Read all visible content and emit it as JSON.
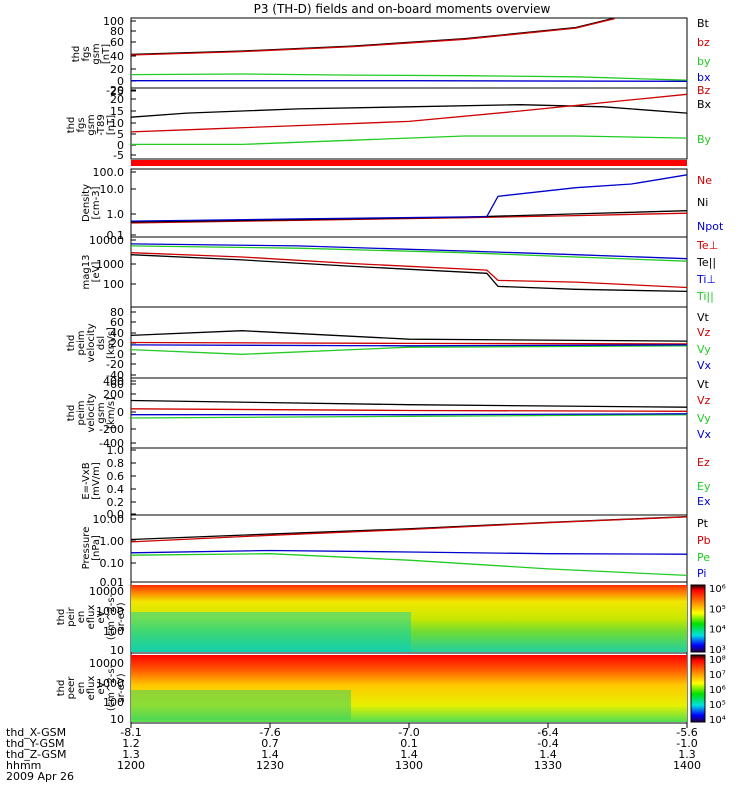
{
  "title": "P3 (TH-D) fields and on-board moments overview",
  "colors": {
    "black": "#000000",
    "red": "#cc0000",
    "green": "#22cc22",
    "blue": "#0000cc",
    "bar_red": "#ff0000"
  },
  "panels": [
    {
      "id": "fgs",
      "ylabel": [
        "thd",
        "fgs",
        "gsm",
        "[nT]"
      ],
      "ticks": [
        "100",
        "80",
        "60",
        "40",
        "20",
        "0",
        "-20"
      ],
      "legend": [
        {
          "text": "Bt",
          "color": "black"
        },
        {
          "text": "bz",
          "color": "red"
        },
        {
          "text": "by",
          "color": "green"
        },
        {
          "text": "bx",
          "color": "blue"
        }
      ]
    },
    {
      "id": "fgs_dt89",
      "ylabel": [
        "thd",
        "fgs",
        "gsm",
        "-T89",
        "[nT]"
      ],
      "ticks": [
        "25",
        "20",
        "15",
        "10",
        "5",
        "0",
        "-5"
      ],
      "legend": [
        {
          "text": "Bz",
          "color": "red"
        },
        {
          "text": "Bx",
          "color": "black"
        },
        {
          "text": "By",
          "color": "green"
        }
      ]
    },
    {
      "id": "density",
      "ylabel": [
        "Density",
        "[cm-3]"
      ],
      "ticks": [
        "100.0",
        "10.0",
        "1.0",
        "0.1"
      ],
      "legend": [
        {
          "text": "Ne",
          "color": "red"
        },
        {
          "text": "Ni",
          "color": "black"
        },
        {
          "text": "Npot",
          "color": "blue"
        }
      ]
    },
    {
      "id": "temp",
      "ylabel": [
        "mag13",
        "[eV]"
      ],
      "ticks": [
        "10000",
        "1000",
        "100"
      ],
      "legend": [
        {
          "text": "Te⊥",
          "color": "red"
        },
        {
          "text": "Te||",
          "color": "black"
        },
        {
          "text": "Ti⊥",
          "color": "blue"
        },
        {
          "text": "Ti||",
          "color": "green"
        }
      ]
    },
    {
      "id": "vel_dsl",
      "ylabel": [
        "thd",
        "peim",
        "velocity",
        "dsl",
        "[km/s]"
      ],
      "ticks": [
        "80",
        "60",
        "40",
        "20",
        "0",
        "-20",
        "-40",
        "-60"
      ],
      "legend": [
        {
          "text": "Vt",
          "color": "black"
        },
        {
          "text": "Vz",
          "color": "red"
        },
        {
          "text": "Vy",
          "color": "green"
        },
        {
          "text": "Vx",
          "color": "blue"
        }
      ]
    },
    {
      "id": "vel_gsm",
      "ylabel": [
        "thd",
        "peim",
        "velocity",
        "gsm",
        "[km/s]"
      ],
      "ticks": [
        "400",
        "200",
        "0",
        "-200",
        "-400"
      ],
      "legend": [
        {
          "text": "Vt",
          "color": "black"
        },
        {
          "text": "Vz",
          "color": "red"
        },
        {
          "text": "Vy",
          "color": "green"
        },
        {
          "text": "Vx",
          "color": "blue"
        }
      ]
    },
    {
      "id": "efield",
      "ylabel": [
        "E=-VxB",
        "[mV/m]"
      ],
      "ticks": [
        "1.0",
        "0.8",
        "0.6",
        "0.4",
        "0.2",
        "0.0"
      ],
      "legend": [
        {
          "text": "Ez",
          "color": "red"
        },
        {
          "text": "Ey",
          "color": "green"
        },
        {
          "text": "Ex",
          "color": "blue"
        }
      ]
    },
    {
      "id": "pressure",
      "ylabel": [
        "Pressure",
        "[nPa]"
      ],
      "ticks": [
        "10.00",
        "1.00",
        "0.10",
        "0.01"
      ],
      "legend": [
        {
          "text": "Pt",
          "color": "black"
        },
        {
          "text": "Pb",
          "color": "red"
        },
        {
          "text": "Pe",
          "color": "green"
        },
        {
          "text": "Pi",
          "color": "blue"
        }
      ]
    },
    {
      "id": "ion_spec",
      "ylabel": [
        "thd",
        "peir",
        "en",
        "eflux",
        "eV",
        "(cm^2-s-",
        "sr-eV)"
      ],
      "ticks": [
        "10000",
        "1000",
        "100",
        "10"
      ],
      "colorbar": [
        "10⁶",
        "10⁵",
        "10⁴",
        "10³"
      ]
    },
    {
      "id": "ele_spec",
      "ylabel": [
        "thd",
        "peer",
        "en",
        "eflux",
        "eV",
        "(cm^2-s-",
        "sr-eV)"
      ],
      "ticks": [
        "10000",
        "1000",
        "100",
        "10"
      ],
      "colorbar": [
        "10⁸",
        "10⁷",
        "10⁶",
        "10⁵",
        "10⁴"
      ]
    }
  ],
  "xaxis": {
    "row_labels": [
      "thd_X-GSM",
      "thd_Y-GSM",
      "thd_Z-GSM",
      "hhmm",
      "2009 Apr 26"
    ],
    "columns": [
      {
        "x": "-8.1",
        "y": "1.2",
        "z": "1.3",
        "t": "1200"
      },
      {
        "x": "-7.6",
        "y": "0.7",
        "z": "1.4",
        "t": "1230"
      },
      {
        "x": "-7.0",
        "y": "0.1",
        "z": "1.4",
        "t": "1300"
      },
      {
        "x": "-6.4",
        "y": "-0.4",
        "z": "1.4",
        "t": "1330"
      },
      {
        "x": "-5.6",
        "y": "-1.0",
        "z": "1.3",
        "t": "1400"
      }
    ]
  },
  "chart_data": {
    "type": "line",
    "title": "P3 (TH-D) fields and on-board moments overview",
    "x_unit": "hhmm",
    "x_range": [
      "1200",
      "1400"
    ],
    "panels": [
      {
        "id": "fgs",
        "ylim": [
          -20,
          105
        ],
        "series": [
          {
            "name": "Bt",
            "color": "black",
            "x": [
              0,
              0.2,
              0.4,
              0.6,
              0.8,
              0.87
            ],
            "y": [
              40,
              46,
              55,
              68,
              88,
              105
            ]
          },
          {
            "name": "bz",
            "color": "red",
            "x": [
              0,
              0.2,
              0.4,
              0.6,
              0.8,
              0.87
            ],
            "y": [
              39,
              45,
              54,
              67,
              87,
              104
            ]
          },
          {
            "name": "by",
            "color": "green",
            "x": [
              0,
              0.2,
              0.4,
              0.6,
              0.8,
              1
            ],
            "y": [
              4,
              5,
              3,
              2,
              0,
              -6
            ]
          },
          {
            "name": "bx",
            "color": "blue",
            "x": [
              0,
              0.5,
              1
            ],
            "y": [
              -7,
              -7,
              -8
            ]
          }
        ]
      },
      {
        "id": "fgs_dt89",
        "ylim": [
          -8,
          26
        ],
        "series": [
          {
            "name": "Bx",
            "color": "black",
            "x": [
              0,
              0.1,
              0.3,
              0.5,
              0.7,
              0.85,
              1
            ],
            "y": [
              12,
              14,
              16,
              17,
              18,
              17,
              14
            ]
          },
          {
            "name": "Bz",
            "color": "red",
            "x": [
              0,
              0.1,
              0.3,
              0.5,
              0.7,
              0.85,
              1
            ],
            "y": [
              5,
              6,
              8,
              10,
              15,
              19,
              23
            ]
          },
          {
            "name": "By",
            "color": "green",
            "x": [
              0,
              0.2,
              0.4,
              0.6,
              0.8,
              1
            ],
            "y": [
              -1,
              -1,
              1,
              3,
              3,
              2
            ]
          }
        ]
      },
      {
        "id": "density",
        "ylim": [
          0.1,
          150
        ],
        "ylog": true,
        "series": [
          {
            "name": "Ne",
            "color": "red",
            "x": [
              0,
              0.3,
              0.6,
              0.8,
              1
            ],
            "y": [
              0.45,
              0.6,
              0.8,
              1.0,
              1.3
            ]
          },
          {
            "name": "Ni",
            "color": "black",
            "x": [
              0,
              0.3,
              0.6,
              0.8,
              1
            ],
            "y": [
              0.5,
              0.65,
              0.85,
              1.2,
              1.7
            ]
          },
          {
            "name": "Npot",
            "color": "blue",
            "x": [
              0,
              0.3,
              0.64,
              0.66,
              0.8,
              0.9,
              1
            ],
            "y": [
              0.55,
              0.7,
              0.9,
              8,
              20,
              30,
              80
            ]
          }
        ]
      },
      {
        "id": "temp",
        "ylim": [
          50,
          12000
        ],
        "ylog": true,
        "series": [
          {
            "name": "Ti||",
            "color": "green",
            "x": [
              0,
              0.3,
              0.6,
              0.8,
              1
            ],
            "y": [
              6000,
              5000,
              3500,
              2500,
              1800
            ]
          },
          {
            "name": "Ti⊥",
            "color": "blue",
            "x": [
              0,
              0.3,
              0.6,
              0.8,
              1
            ],
            "y": [
              7000,
              6000,
              4000,
              3000,
              2200
            ]
          },
          {
            "name": "Te⊥",
            "color": "red",
            "x": [
              0,
              0.2,
              0.4,
              0.64,
              0.66,
              0.8,
              1
            ],
            "y": [
              3500,
              2500,
              1500,
              900,
              400,
              350,
              230
            ]
          },
          {
            "name": "Te||",
            "color": "black",
            "x": [
              0,
              0.2,
              0.4,
              0.64,
              0.66,
              0.8,
              1
            ],
            "y": [
              3000,
              2000,
              1200,
              700,
              250,
              200,
              170
            ]
          }
        ]
      },
      {
        "id": "vel_dsl",
        "ylim": [
          -70,
          80
        ],
        "series": [
          {
            "name": "Vt",
            "color": "black",
            "x": [
              0,
              0.2,
              0.5,
              1
            ],
            "y": [
              20,
              30,
              12,
              8
            ]
          },
          {
            "name": "Vz",
            "color": "red",
            "x": [
              0,
              0.5,
              1
            ],
            "y": [
              5,
              3,
              2
            ]
          },
          {
            "name": "Vy",
            "color": "green",
            "x": [
              0,
              0.2,
              0.5,
              1
            ],
            "y": [
              -10,
              -20,
              -5,
              -2
            ]
          },
          {
            "name": "Vx",
            "color": "blue",
            "x": [
              0,
              0.5,
              1
            ],
            "y": [
              0,
              -2,
              0
            ]
          }
        ]
      },
      {
        "id": "vel_gsm",
        "ylim": [
          -420,
          420
        ],
        "series": [
          {
            "name": "Vt",
            "color": "black",
            "x": [
              0,
              0.5,
              1
            ],
            "y": [
              150,
              100,
              70
            ]
          },
          {
            "name": "Vz",
            "color": "red",
            "x": [
              0,
              0.5,
              1
            ],
            "y": [
              50,
              30,
              20
            ]
          },
          {
            "name": "Vy",
            "color": "green",
            "x": [
              0,
              0.5,
              1
            ],
            "y": [
              -60,
              -40,
              -20
            ]
          },
          {
            "name": "Vx",
            "color": "blue",
            "x": [
              0,
              0.5,
              1
            ],
            "y": [
              -20,
              -20,
              -10
            ]
          }
        ]
      },
      {
        "id": "efield",
        "ylim": [
          0,
          1
        ],
        "series": []
      },
      {
        "id": "pressure",
        "ylim": [
          0.01,
          12
        ],
        "ylog": true,
        "series": [
          {
            "name": "Pt",
            "color": "black",
            "x": [
              0,
              0.25,
              0.5,
              0.75,
              1
            ],
            "y": [
              0.9,
              1.6,
              2.8,
              5.5,
              10
            ]
          },
          {
            "name": "Pb",
            "color": "red",
            "x": [
              0,
              0.25,
              0.5,
              0.75,
              1
            ],
            "y": [
              0.7,
              1.4,
              2.6,
              5.3,
              9.8
            ]
          },
          {
            "name": "Pi",
            "color": "blue",
            "x": [
              0,
              0.25,
              0.5,
              0.75,
              1
            ],
            "y": [
              0.22,
              0.28,
              0.24,
              0.2,
              0.19
            ]
          },
          {
            "name": "Pe",
            "color": "green",
            "x": [
              0,
              0.25,
              0.5,
              0.75,
              1
            ],
            "y": [
              0.17,
              0.2,
              0.1,
              0.04,
              0.02
            ]
          }
        ]
      }
    ]
  }
}
